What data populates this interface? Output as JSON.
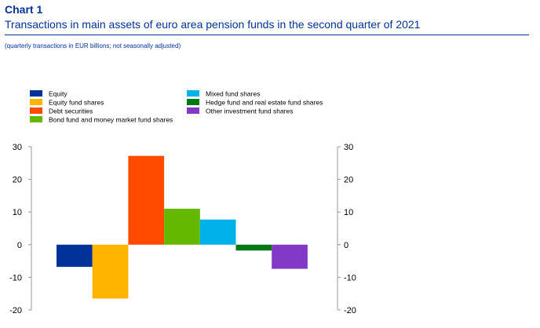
{
  "header": {
    "chart_number": "Chart 1",
    "title": "Transactions in main assets of euro area pension funds in the second quarter of 2021",
    "subtitle": "(quarterly transactions in EUR billions; not seasonally adjusted)"
  },
  "chart_data": {
    "type": "bar",
    "title": "Transactions in main assets of euro area pension funds in the second quarter of 2021",
    "subtitle": "(quarterly transactions in EUR billions; not seasonally adjusted)",
    "xlabel": "",
    "ylabel": "",
    "ylim": [
      -20,
      30
    ],
    "yticks": [
      30,
      20,
      10,
      0,
      -10,
      -20
    ],
    "ytick_labels": [
      "30",
      "20",
      "10",
      "0",
      "-10",
      "-20"
    ],
    "dual_y_axis": true,
    "grid": false,
    "legend_position": "top",
    "series": [
      {
        "name": "Equity",
        "value": -6.8,
        "color": "#003299"
      },
      {
        "name": "Equity fund shares",
        "value": -16.5,
        "color": "#FFB400"
      },
      {
        "name": "Debt securities",
        "value": 27.2,
        "color": "#FF4B00"
      },
      {
        "name": "Bond fund and money market fund shares",
        "value": 11.0,
        "color": "#65B800"
      },
      {
        "name": "Mixed fund shares",
        "value": 7.7,
        "color": "#00B1EA"
      },
      {
        "name": "Hedge fund and real estate fund shares",
        "value": -1.8,
        "color": "#007816"
      },
      {
        "name": "Other investment fund shares",
        "value": -7.4,
        "color": "#8139C6"
      }
    ]
  }
}
